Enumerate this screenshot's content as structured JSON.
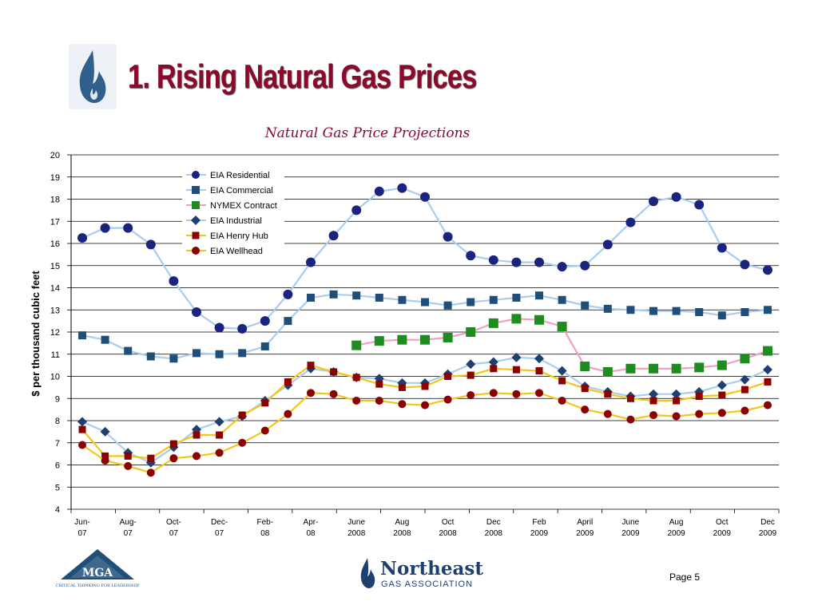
{
  "slide": {
    "title": "1. Rising Natural Gas Prices",
    "page_label": "Page 5",
    "logos": {
      "left": {
        "icon": "flame-icon",
        "color": "#2f5f8a"
      },
      "mga": {
        "text": "MGA",
        "tagline": "CRITICAL THINKING FOR LEADERSHIP",
        "color": "#1f4e79"
      },
      "nga": {
        "name": "Northeast",
        "sub": "GAS ASSOCIATION",
        "color": "#1f3f6e"
      }
    }
  },
  "colors": {
    "title": "#8b0a2c",
    "residential": "#1a237e",
    "commercial": "#1f4e79",
    "nymex": "#1e8c1e",
    "industrial": "#1f3f6e",
    "henry": "#8b0000",
    "wellhead": "#8b0000",
    "line_residential": "#a8cdee",
    "line_commercial": "#a8cdee",
    "line_nymex": "#f2a0c0",
    "line_industrial": "#a8cdee",
    "line_henry": "#f5c518",
    "line_wellhead": "#f5c518"
  },
  "chart_data": {
    "type": "line",
    "title": "Natural Gas Price Projections",
    "ylabel": "$ per thousand cubic feet",
    "xlabel": "",
    "ylim": [
      4,
      20
    ],
    "yticks": [
      4,
      5,
      6,
      7,
      8,
      9,
      10,
      11,
      12,
      13,
      14,
      15,
      16,
      17,
      18,
      19,
      20
    ],
    "grid": true,
    "legend_position": "top-center",
    "x_labels": [
      {
        "top": "Jun-",
        "bottom": "07"
      },
      {
        "top": "Aug-",
        "bottom": "07"
      },
      {
        "top": "Oct-",
        "bottom": "07"
      },
      {
        "top": "Dec-",
        "bottom": "07"
      },
      {
        "top": "Feb-",
        "bottom": "08"
      },
      {
        "top": "Apr-",
        "bottom": "08"
      },
      {
        "top": "June",
        "bottom": "2008"
      },
      {
        "top": "Aug",
        "bottom": "2008"
      },
      {
        "top": "Oct",
        "bottom": "2008"
      },
      {
        "top": "Dec",
        "bottom": "2008"
      },
      {
        "top": "Feb",
        "bottom": "2009"
      },
      {
        "top": "April",
        "bottom": "2009"
      },
      {
        "top": "June",
        "bottom": "2009"
      },
      {
        "top": "Aug",
        "bottom": "2009"
      },
      {
        "top": "Oct",
        "bottom": "2009"
      },
      {
        "top": "Dec",
        "bottom": "2009"
      }
    ],
    "series": [
      {
        "name": "EIA Residential",
        "marker": "circle",
        "color_key": "residential",
        "line_key": "line_residential",
        "values": [
          16.25,
          16.7,
          16.7,
          15.95,
          14.3,
          12.9,
          12.2,
          12.15,
          12.5,
          13.7,
          15.15,
          16.35,
          17.5,
          18.35,
          18.5,
          18.1,
          16.3,
          15.45,
          15.25,
          15.15,
          15.15,
          14.95,
          15.0,
          15.95,
          16.95,
          17.9,
          18.1,
          17.75,
          15.8,
          15.05,
          14.8
        ]
      },
      {
        "name": "EIA Commercial",
        "marker": "square",
        "color_key": "commercial",
        "line_key": "line_commercial",
        "values": [
          11.85,
          11.65,
          11.15,
          10.9,
          10.8,
          11.05,
          11.0,
          11.05,
          11.35,
          12.5,
          13.55,
          13.7,
          13.65,
          13.55,
          13.45,
          13.35,
          13.2,
          13.35,
          13.45,
          13.55,
          13.65,
          13.45,
          13.2,
          13.05,
          13.0,
          12.95,
          12.95,
          12.9,
          12.75,
          12.9,
          13.0
        ]
      },
      {
        "name": "NYMEX Contract",
        "marker": "square-big",
        "color_key": "nymex",
        "line_key": "line_nymex",
        "values": [
          null,
          null,
          null,
          null,
          null,
          null,
          null,
          null,
          null,
          null,
          null,
          null,
          11.4,
          11.6,
          11.65,
          11.65,
          11.75,
          12.0,
          12.4,
          12.6,
          12.55,
          12.25,
          10.45,
          10.2,
          10.35,
          10.35,
          10.35,
          10.4,
          10.5,
          10.8,
          11.15
        ]
      },
      {
        "name": "EIA Industrial",
        "marker": "diamond",
        "color_key": "industrial",
        "line_key": "line_industrial",
        "values": [
          7.95,
          7.5,
          6.55,
          6.1,
          6.8,
          7.6,
          7.95,
          8.2,
          8.9,
          9.6,
          10.35,
          10.2,
          9.95,
          9.9,
          9.7,
          9.7,
          10.1,
          10.55,
          10.65,
          10.85,
          10.8,
          10.25,
          9.55,
          9.3,
          9.1,
          9.2,
          9.2,
          9.3,
          9.6,
          9.85,
          10.3
        ]
      },
      {
        "name": "EIA Henry Hub",
        "marker": "square-small",
        "color_key": "henry",
        "line_key": "line_henry",
        "values": [
          7.6,
          6.4,
          6.4,
          6.3,
          6.95,
          7.35,
          7.35,
          8.25,
          8.8,
          9.75,
          10.5,
          10.2,
          9.95,
          9.65,
          9.5,
          9.55,
          10.0,
          10.05,
          10.35,
          10.3,
          10.25,
          9.8,
          9.45,
          9.2,
          9.0,
          8.9,
          8.9,
          9.1,
          9.15,
          9.4,
          9.75
        ]
      },
      {
        "name": "EIA Wellhead",
        "marker": "circle-small",
        "color_key": "wellhead",
        "line_key": "line_wellhead",
        "values": [
          6.9,
          6.2,
          5.95,
          5.65,
          6.3,
          6.4,
          6.55,
          7.0,
          7.55,
          8.3,
          9.25,
          9.2,
          8.9,
          8.9,
          8.75,
          8.7,
          8.95,
          9.15,
          9.25,
          9.2,
          9.25,
          8.9,
          8.5,
          8.3,
          8.05,
          8.25,
          8.2,
          8.3,
          8.35,
          8.45,
          8.7
        ]
      }
    ]
  }
}
